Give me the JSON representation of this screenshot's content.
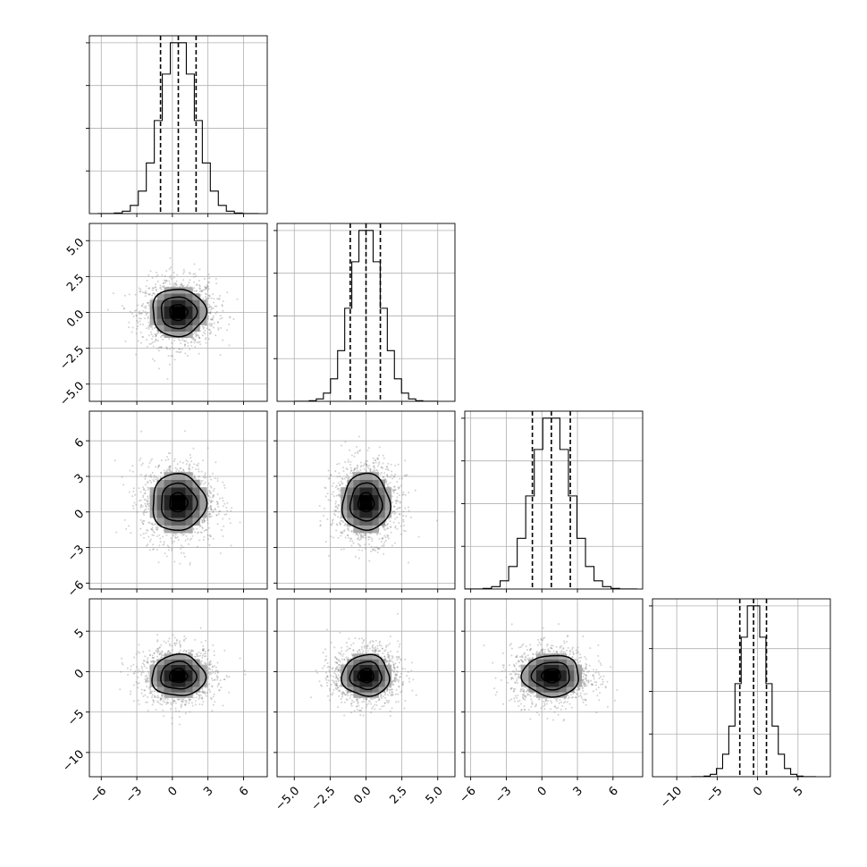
{
  "chart_data": {
    "type": "corner",
    "title": "",
    "parameters": [
      {
        "range": [
          -7,
          8
        ],
        "ticks": [
          -6,
          -3,
          0,
          3,
          6
        ],
        "tick_labels": [
          "−6",
          "−3",
          "0",
          "3",
          "6"
        ],
        "mean": 0.5,
        "sigma": 1.5,
        "quantiles": [
          -1.0,
          0.5,
          2.0
        ]
      },
      {
        "range": [
          -6.2,
          6.2
        ],
        "ticks": [
          -5.0,
          -2.5,
          0.0,
          2.5,
          5.0
        ],
        "tick_labels": [
          "−5.0",
          "−2.5",
          "0.0",
          "2.5",
          "5.0"
        ],
        "mean": 0.0,
        "sigma": 1.1,
        "quantiles": [
          -1.1,
          0.0,
          1.0
        ]
      },
      {
        "range": [
          -6.5,
          8.5
        ],
        "ticks": [
          -6,
          -3,
          0,
          3,
          6
        ],
        "tick_labels": [
          "−6",
          "−3",
          "0",
          "3",
          "6"
        ],
        "mean": 0.8,
        "sigma": 1.6,
        "quantiles": [
          -0.8,
          0.8,
          2.4
        ]
      },
      {
        "range": [
          -13,
          9
        ],
        "ticks": [
          -10,
          -5,
          0,
          5
        ],
        "tick_labels": [
          "−10",
          "−5",
          "0",
          "5"
        ],
        "mean": -0.5,
        "sigma": 1.7,
        "quantiles": [
          -2.2,
          -0.5,
          1.1
        ]
      }
    ],
    "histogram_bins": 20,
    "quantiles_shown": [
      0.16,
      0.5,
      0.84
    ],
    "grid": true,
    "contour_levels": [
      0.5,
      1.0,
      1.5
    ],
    "legend": "none"
  }
}
